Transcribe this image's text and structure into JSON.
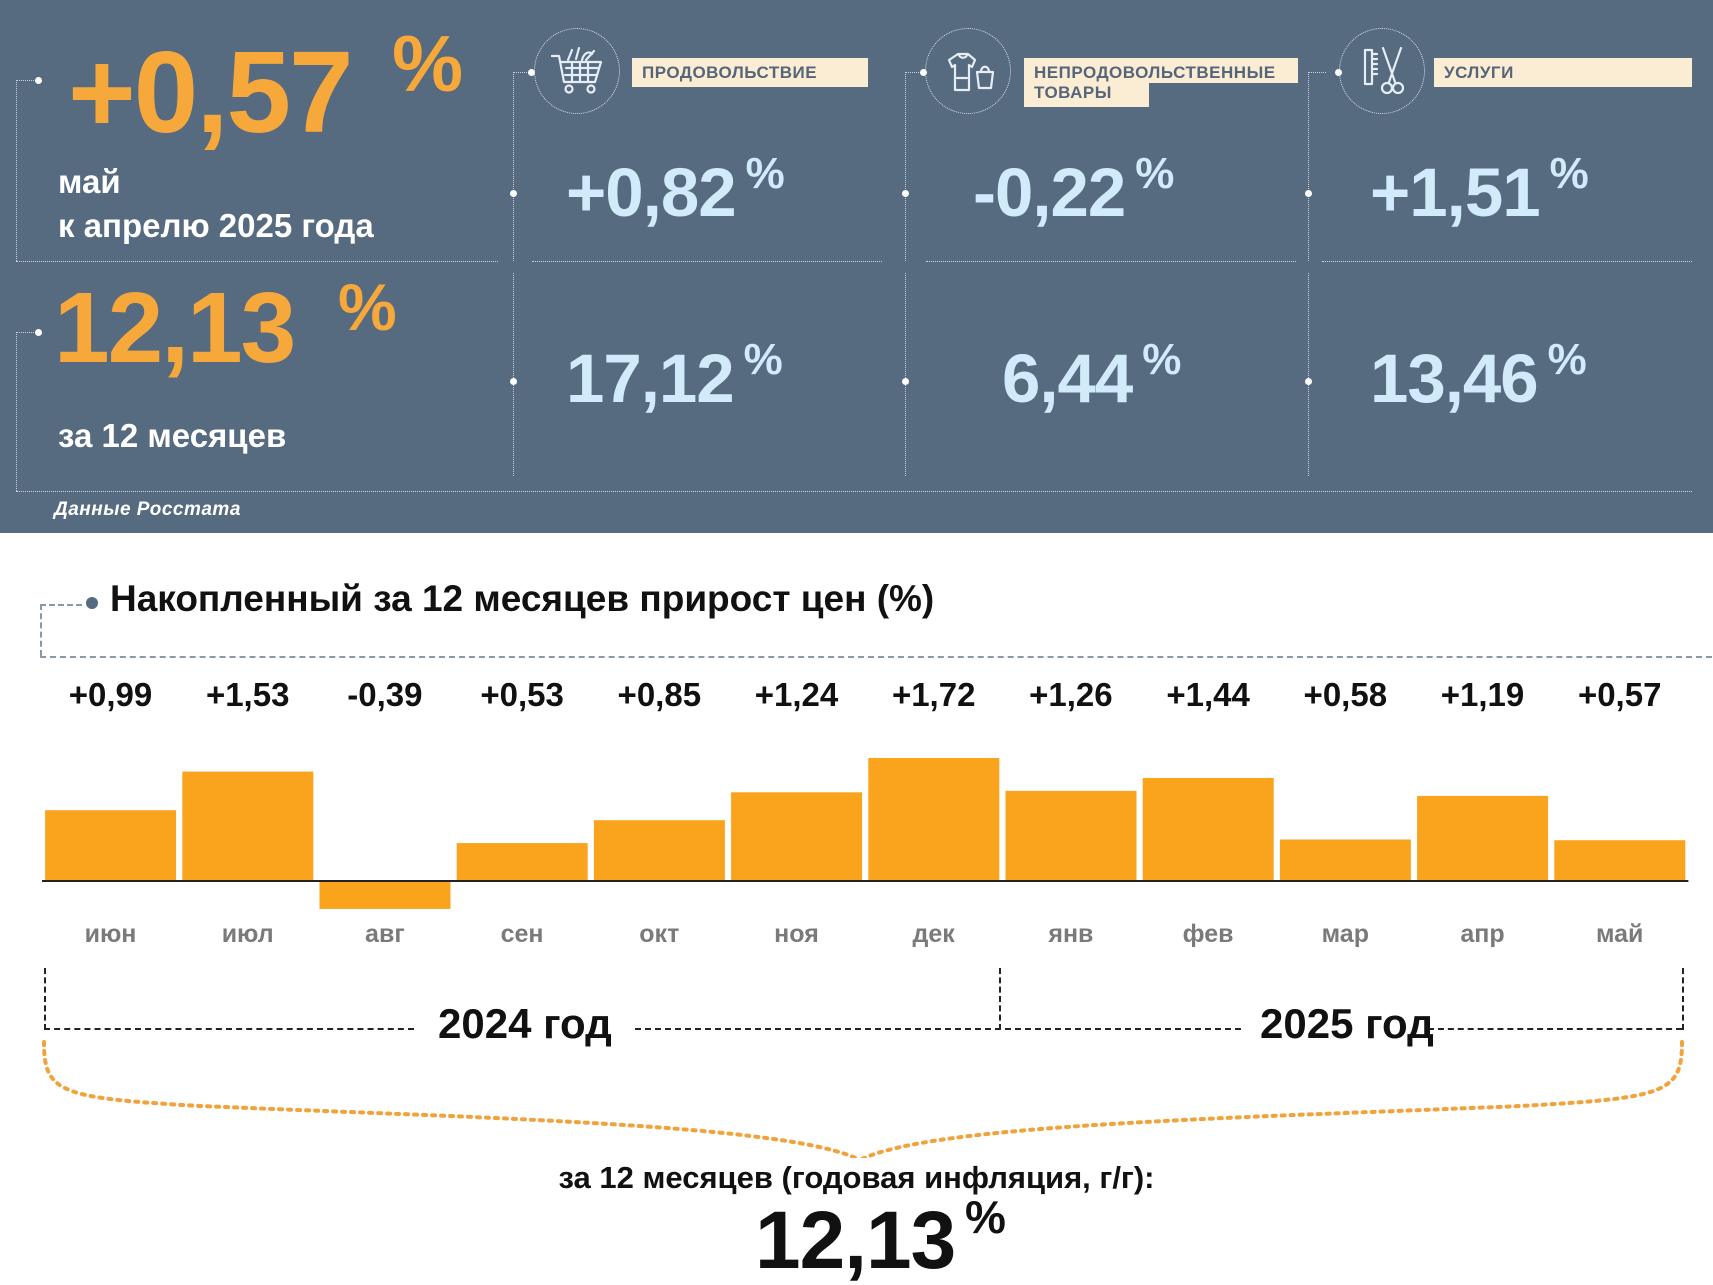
{
  "summary": {
    "monthly": {
      "value": "+0,57",
      "unit": "%",
      "label_line1": "май",
      "label_line2": "к апрелю 2025 года"
    },
    "yearly": {
      "value": "12,13",
      "unit": "%",
      "label": "за 12 месяцев"
    },
    "source": "Данные Росстата"
  },
  "categories": [
    {
      "label": "ПРОДОВОЛЬСТВИЕ",
      "icon": "shopping-cart-icon",
      "monthly": "+0,82",
      "yearly": "17,12",
      "unit": "%"
    },
    {
      "label_line1": "НЕПРОДОВОЛЬСТВЕННЫЕ",
      "label_line2": "ТОВАРЫ",
      "icon": "clothes-bag-icon",
      "monthly": "-0,22",
      "yearly": "6,44",
      "unit": "%"
    },
    {
      "label": "УСЛУГИ",
      "icon": "comb-scissors-icon",
      "monthly": "+1,51",
      "yearly": "13,46",
      "unit": "%"
    }
  ],
  "colors": {
    "panel": "#566a80",
    "accent_orange": "#f6a83b",
    "light_value": "#d1ebfb",
    "bar": "#faa31c",
    "category_label_bg": "#fbecd4"
  },
  "chart_data": {
    "type": "bar",
    "title": "Накопленный за 12 месяцев прирост цен (%)",
    "categories": [
      "июн",
      "июл",
      "авг",
      "сен",
      "окт",
      "ноя",
      "дек",
      "янв",
      "фев",
      "мар",
      "апр",
      "май"
    ],
    "values": [
      0.99,
      1.53,
      -0.39,
      0.53,
      0.85,
      1.24,
      1.72,
      1.26,
      1.44,
      0.58,
      1.19,
      0.57
    ],
    "value_labels": [
      "+0,99",
      "+1,53",
      "-0,39",
      "+0,53",
      "+0,85",
      "+1,24",
      "+1,72",
      "+1,26",
      "+1,44",
      "+0,58",
      "+1,19",
      "+0,57"
    ],
    "year_groups": [
      {
        "label": "2024 год",
        "months": 7
      },
      {
        "label": "2025 год",
        "months": 5
      }
    ],
    "grid": false,
    "legend": "none"
  },
  "footer": {
    "caption": "за 12 месяцев (годовая инфляция, г/г):",
    "value": "12,13",
    "unit": "%"
  }
}
